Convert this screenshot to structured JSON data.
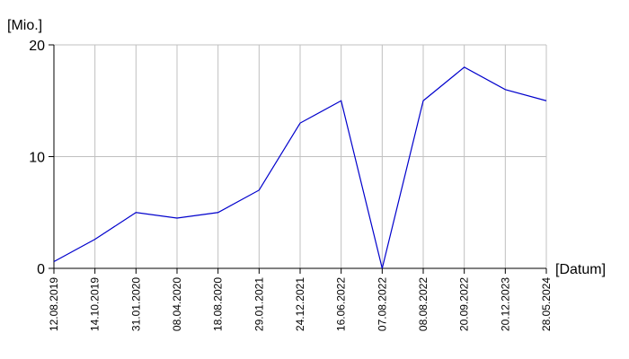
{
  "chart_data": {
    "type": "line",
    "y_label": "[Mio.]",
    "x_label": "[Datum]",
    "categories": [
      "12.08.2019",
      "14.10.2019",
      "31.01.2020",
      "08.04.2020",
      "18.08.2020",
      "29.01.2021",
      "24.12.2021",
      "16.06.2022",
      "07.08.2022",
      "08.08.2022",
      "20.09.2022",
      "20.12.2023",
      "28.05.2024"
    ],
    "values": [
      0.6,
      2.6,
      5.0,
      4.5,
      5.0,
      7.0,
      13.0,
      15.0,
      0.0,
      15.0,
      18.0,
      16.0,
      15.0
    ],
    "color": "#0000cc",
    "ylim": [
      0,
      20
    ],
    "yticks": [
      0,
      10,
      20
    ],
    "grid": true
  }
}
